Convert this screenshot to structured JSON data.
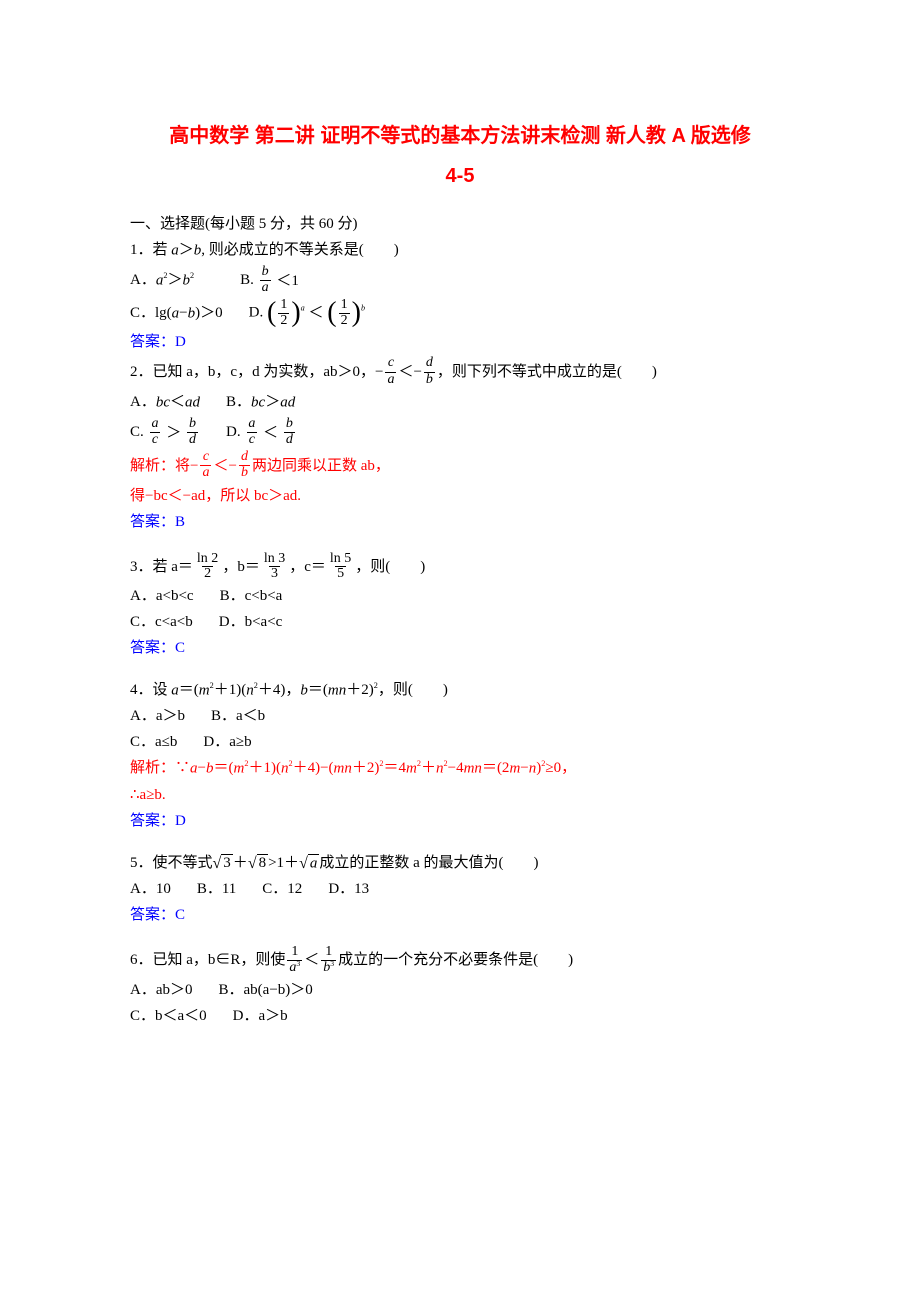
{
  "colors": {
    "title": "#ff0000",
    "answer": "#0000ff",
    "solution": "#ff0000",
    "text": "#000000",
    "background": "#ffffff"
  },
  "fonts": {
    "title_family": "SimHei",
    "body_family": "SimSun",
    "math_italic_family": "Times New Roman",
    "title_size_pt": 20,
    "body_size_pt": 15
  },
  "title": "高中数学 第二讲 证明不等式的基本方法讲末检测 新人教 A 版选修",
  "subtitle": "4-5",
  "section1": "一、选择题(每小题 5 分，共 60 分)",
  "q1": {
    "stem": "1．若 a＞b, 则必成立的不等关系是(　　)",
    "optA_pre": "A．",
    "optA_math": "a²＞b²",
    "optB_pre": "B.",
    "optB_frac_num": "b",
    "optB_frac_den": "a",
    "optB_post": "＜1",
    "optC": "C．lg(a−b)＞0",
    "optD_pre": "D.",
    "optD_half": "1",
    "optD_half_den": "2",
    "optD_lt": "＜",
    "answer": "答案：D"
  },
  "q2": {
    "stem_pre": "2．已知 a，b，c，d 为实数，ab＞0，−",
    "frac1_num": "c",
    "frac1_den": "a",
    "mid": "＜−",
    "frac2_num": "d",
    "frac2_den": "b",
    "stem_post": "，则下列不等式中成立的是(　　)",
    "optA": "A．bc＜ad",
    "optB": "B．bc＞ad",
    "optC_pre": "C.",
    "optC_f1n": "a",
    "optC_f1d": "c",
    "optC_gt": "＞",
    "optC_f2n": "b",
    "optC_f2d": "d",
    "optD_pre": "D.",
    "optD_f1n": "a",
    "optD_f1d": "c",
    "optD_lt": "＜",
    "optD_f2n": "b",
    "optD_f2d": "d",
    "sol_pre": "解析：将−",
    "sol_mid": "＜−",
    "sol_post": "两边同乘以正数 ab，",
    "sol_line2": "得−bc＜−ad，所以 bc＞ad.",
    "answer": "答案：B"
  },
  "q3": {
    "stem_pre": "3．若 a＝",
    "f1n": "ln 2",
    "f1d": "2",
    "c1": "，b＝",
    "f2n": "ln 3",
    "f2d": "3",
    "c2": "，c＝",
    "f3n": "ln 5",
    "f3d": "5",
    "stem_post": "，则(　　)",
    "optA": "A．a<b<c",
    "optB": "B．c<b<a",
    "optC": "C．c<a<b",
    "optD": "D．b<a<c",
    "answer": "答案：C"
  },
  "q4": {
    "stem": "4．设 a＝(m²＋1)(n²＋4)，b＝(mn＋2)²，则(　　)",
    "optA": "A．a＞b",
    "optB": "B．a＜b",
    "optC": "C．a≤b",
    "optD": "D．a≥b",
    "sol1": "解析：∵a−b＝(m²＋1)(n²＋4)−(mn＋2)²＝4m²＋n²−4mn＝(2m−n)²≥0，",
    "sol2": "∴a≥b.",
    "answer": "答案：D"
  },
  "q5": {
    "stem_pre": "5．使不等式",
    "r1": "3",
    "plus": "＋",
    "r2": "8",
    "gt": ">1＋",
    "r3": "a",
    "stem_post": "成立的正整数 a 的最大值为(　　)",
    "optA": "A．10",
    "optB": "B．11",
    "optC": "C．12",
    "optD": "D．13",
    "answer": "答案：C"
  },
  "q6": {
    "stem_pre": "6．已知 a，b∈R，则使",
    "f1n": "1",
    "f1d": "a³",
    "lt": "＜",
    "f2n": "1",
    "f2d": "b³",
    "stem_post": "成立的一个充分不必要条件是(　　)",
    "optA": "A．ab＞0",
    "optB": "B．ab(a−b)＞0",
    "optC": "C．b＜a＜0",
    "optD": "D．a＞b"
  }
}
